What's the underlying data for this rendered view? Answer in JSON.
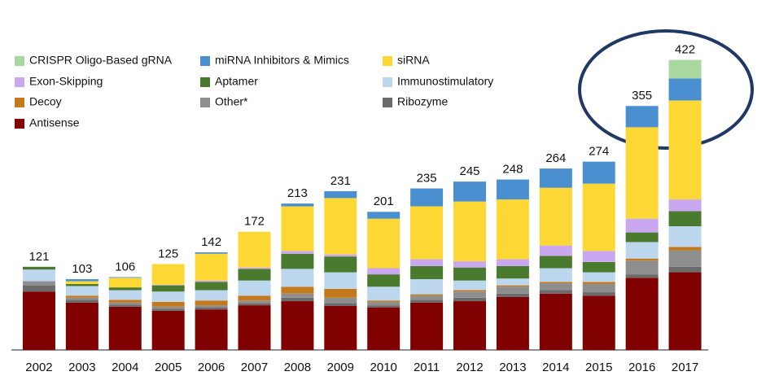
{
  "chart_data": {
    "type": "stacked_bar",
    "categories": [
      "2002",
      "2003",
      "2004",
      "2005",
      "2006",
      "2007",
      "2008",
      "2009",
      "2010",
      "2011",
      "2012",
      "2013",
      "2014",
      "2015",
      "2016",
      "2017"
    ],
    "series": [
      {
        "name": "Antisense",
        "color": "#800000",
        "values": [
          85,
          69,
          63,
          57,
          59,
          65,
          71,
          64,
          62,
          69,
          71,
          77,
          82,
          79,
          105,
          113
        ]
      },
      {
        "name": "Ribozyme",
        "color": "#6b6b6b",
        "values": [
          9,
          4,
          3,
          3,
          3,
          3,
          5,
          4,
          3,
          4,
          5,
          5,
          5,
          5,
          5,
          8
        ]
      },
      {
        "name": "Other*",
        "color": "#8e8e8e",
        "values": [
          6,
          3,
          3,
          3,
          3,
          4,
          6,
          8,
          5,
          6,
          9,
          10,
          10,
          12,
          20,
          24
        ]
      },
      {
        "name": "Decoy",
        "color": "#c47a1c",
        "values": [
          0,
          3,
          4,
          7,
          7,
          7,
          10,
          13,
          2,
          2,
          2,
          2,
          2,
          3,
          3,
          5
        ]
      },
      {
        "name": "Immunostimulatory",
        "color": "#bcd6ee",
        "values": [
          17,
          14,
          14,
          15,
          15,
          22,
          26,
          24,
          20,
          22,
          14,
          10,
          20,
          14,
          24,
          30
        ]
      },
      {
        "name": "Aptamer",
        "color": "#4a7a2e",
        "values": [
          4,
          3,
          4,
          9,
          12,
          17,
          22,
          23,
          18,
          19,
          19,
          18,
          18,
          15,
          14,
          22
        ]
      },
      {
        "name": "Exon-Skipping",
        "color": "#c9a8f0",
        "values": [
          0,
          0,
          0,
          1,
          2,
          2,
          4,
          3,
          9,
          10,
          9,
          10,
          15,
          16,
          20,
          17
        ]
      },
      {
        "name": "siRNA",
        "color": "#fdd835",
        "values": [
          0,
          4,
          14,
          30,
          39,
          52,
          65,
          82,
          72,
          77,
          87,
          87,
          84,
          98,
          133,
          144
        ]
      },
      {
        "name": "miRNA Inhibitors & Mimics",
        "color": "#4a90d0",
        "values": [
          0,
          3,
          1,
          0,
          2,
          0,
          4,
          10,
          10,
          26,
          29,
          29,
          28,
          32,
          31,
          32
        ]
      },
      {
        "name": "CRISPR Oligo-Based gRNA",
        "color": "#a8d8a0",
        "values": [
          0,
          0,
          0,
          0,
          0,
          0,
          0,
          0,
          0,
          0,
          0,
          0,
          0,
          0,
          0,
          27
        ]
      }
    ],
    "totals": [
      121,
      103,
      106,
      125,
      142,
      172,
      213,
      231,
      201,
      235,
      245,
      248,
      264,
      274,
      355,
      422
    ],
    "ylim": [
      0,
      450
    ]
  }
}
